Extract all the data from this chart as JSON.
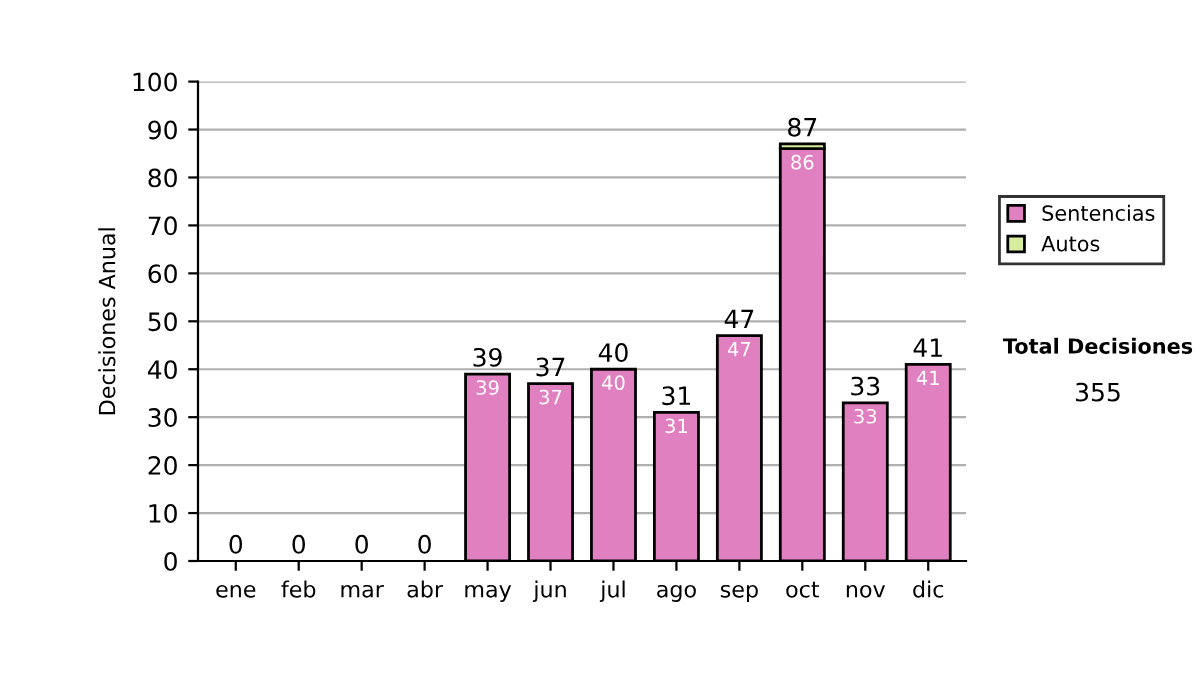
{
  "chart_data": {
    "type": "bar",
    "ylabel": "Decisiones Anual",
    "categories": [
      "ene",
      "feb",
      "mar",
      "abr",
      "may",
      "jun",
      "jul",
      "ago",
      "sep",
      "oct",
      "nov",
      "dic"
    ],
    "stacked": true,
    "series": [
      {
        "name": "Sentencias",
        "color": "#e080c0",
        "values": [
          0,
          0,
          0,
          0,
          39,
          37,
          40,
          31,
          47,
          86,
          33,
          41
        ],
        "value_labels": [
          null,
          null,
          null,
          null,
          "39",
          "37",
          "40",
          "31",
          "47",
          "86",
          "33",
          "41"
        ]
      },
      {
        "name": "Autos",
        "color": "#d8eca0",
        "values": [
          null,
          null,
          null,
          null,
          null,
          null,
          null,
          null,
          null,
          1,
          null,
          null
        ]
      }
    ],
    "totals": [
      "0",
      "0",
      "0",
      "0",
      "39",
      "37",
      "40",
      "31",
      "47",
      "87",
      "33",
      "41"
    ],
    "ylim": [
      0,
      100
    ],
    "yticks": [
      0,
      10,
      20,
      30,
      40,
      50,
      60,
      70,
      80,
      90,
      100
    ],
    "grid": "y",
    "legend": "right",
    "annotations": [
      "Total Decisiones",
      "355"
    ]
  }
}
